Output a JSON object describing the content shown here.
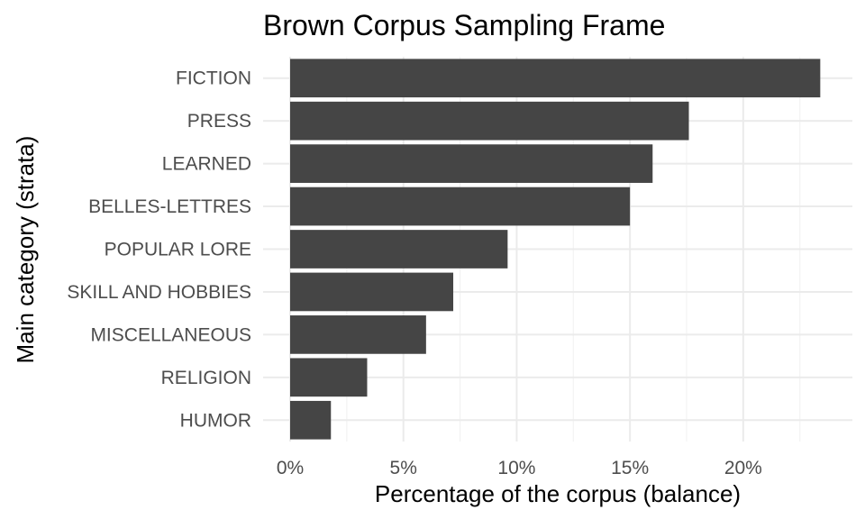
{
  "chart_data": {
    "type": "bar",
    "orientation": "horizontal",
    "title": "Brown Corpus Sampling Frame",
    "xlabel": "Percentage of the corpus (balance)",
    "ylabel": "Main category (strata)",
    "categories": [
      "FICTION",
      "PRESS",
      "LEARNED",
      "BELLES-LETTRES",
      "POPULAR LORE",
      "SKILL AND HOBBIES",
      "MISCELLANEOUS",
      "RELIGION",
      "HUMOR"
    ],
    "values": [
      23.4,
      17.6,
      16.0,
      15.0,
      9.6,
      7.2,
      6.0,
      3.4,
      1.8
    ],
    "xlim": [
      0,
      24.5
    ],
    "xticks": [
      0,
      5,
      10,
      15,
      20
    ],
    "xtick_labels": [
      "0%",
      "5%",
      "10%",
      "15%",
      "20%"
    ],
    "grid": true,
    "legend": "none",
    "bar_color": "#454545"
  }
}
